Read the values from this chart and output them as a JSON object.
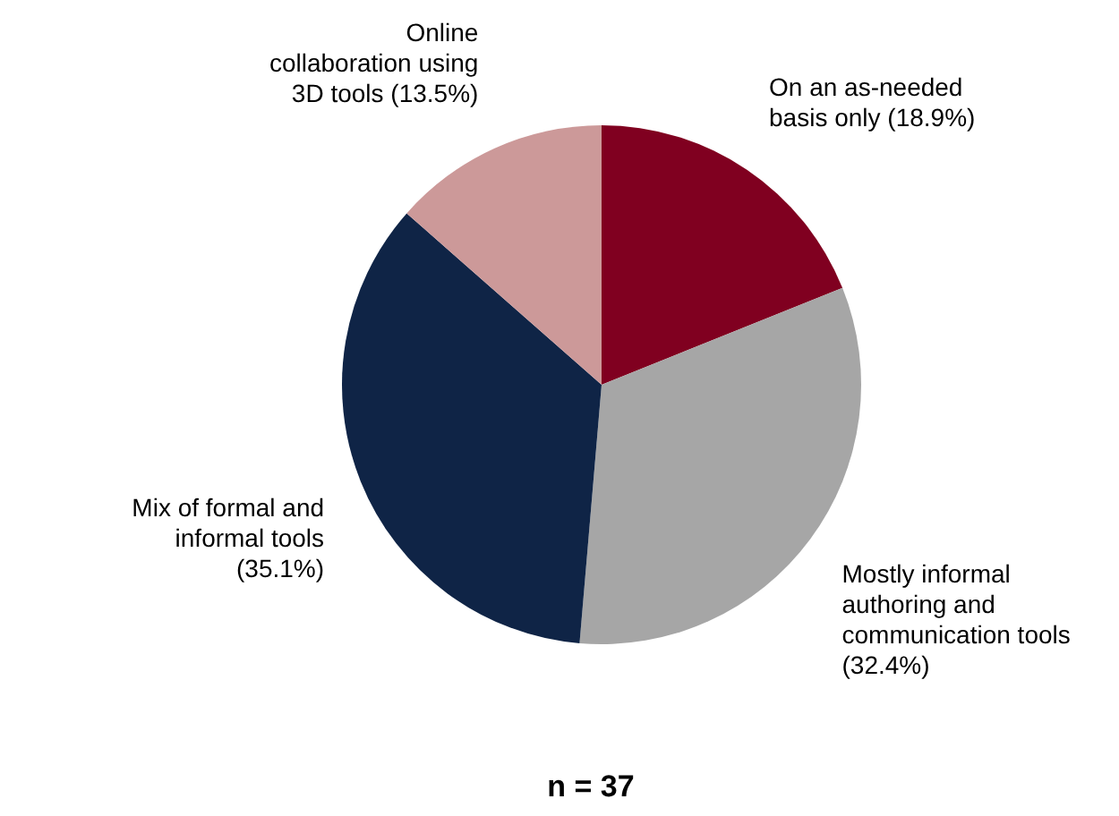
{
  "chart_data": {
    "type": "pie",
    "categories": [
      "On an as-needed basis only",
      "Mostly informal authoring and communication tools",
      "Mix of formal and informal tools",
      "Online collaboration using 3D tools"
    ],
    "values": [
      18.9,
      32.4,
      35.1,
      13.5
    ],
    "value_labels": [
      "(18.9%)",
      "(32.4%)",
      "(35.1%)",
      "(13.5%)"
    ],
    "colors": [
      "#800020",
      "#a6a6a6",
      "#0f2446",
      "#cc9999"
    ],
    "annotations": [
      "n = 37"
    ]
  }
}
